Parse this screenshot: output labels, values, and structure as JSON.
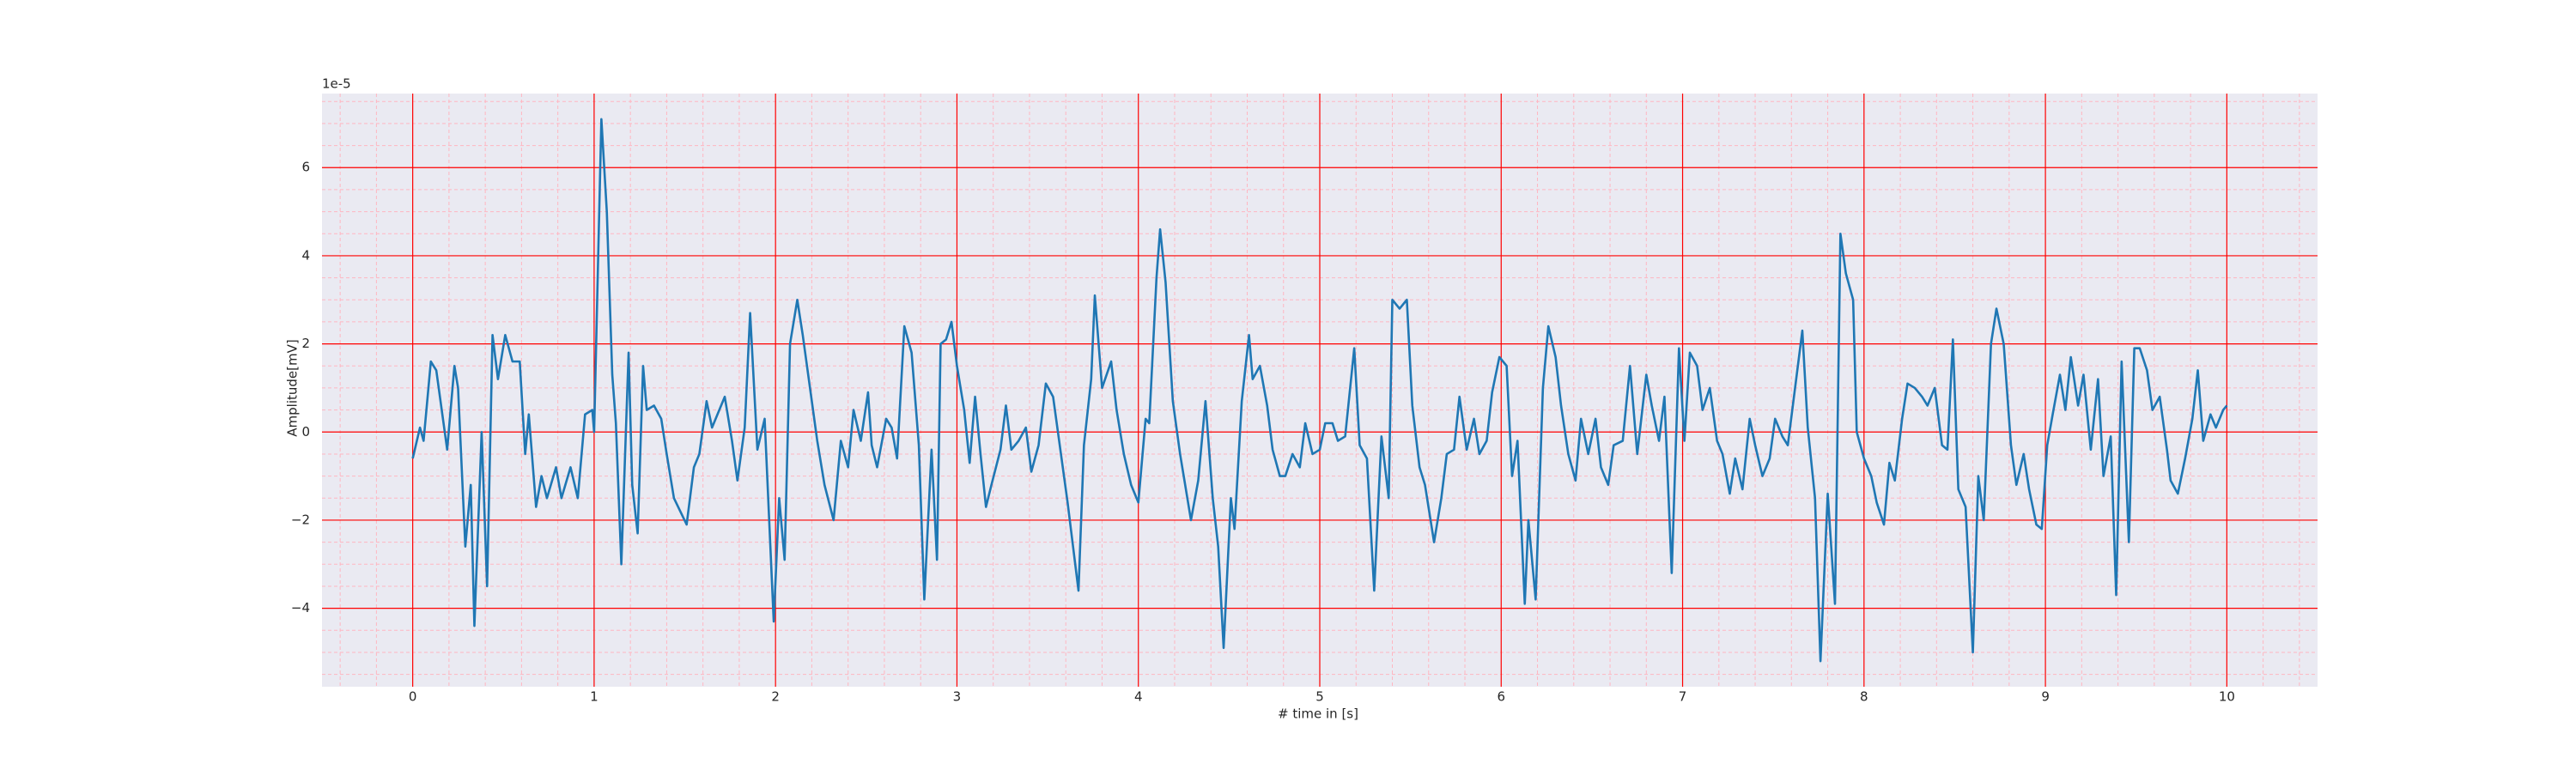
{
  "chart_data": {
    "type": "line",
    "x_label": "# time in [s]",
    "y_label": "Amplitude[mV]",
    "y_offset_label": "1e-5",
    "color": "#1f77b4",
    "background": "#eaeaf2",
    "grid": true,
    "grid_color": "#ff0000",
    "minor_grid": true,
    "minor_grid_color": "#ffb6c1",
    "x_minor_divisions": 5,
    "y_minor_divisions": 4,
    "xlim": [
      -0.5,
      10.5
    ],
    "ylim": [
      -5.78,
      7.68
    ],
    "xticks": [
      0,
      1,
      2,
      3,
      4,
      5,
      6,
      7,
      8,
      9,
      10
    ],
    "yticks": [
      {
        "value": -4,
        "label": "−4"
      },
      {
        "value": -2,
        "label": "−2"
      },
      0,
      2,
      4,
      6
    ],
    "x": [
      0.0,
      0.04,
      0.06,
      0.1,
      0.13,
      0.19,
      0.23,
      0.25,
      0.29,
      0.32,
      0.34,
      0.38,
      0.41,
      0.44,
      0.47,
      0.51,
      0.55,
      0.59,
      0.62,
      0.64,
      0.68,
      0.71,
      0.74,
      0.79,
      0.82,
      0.87,
      0.91,
      0.95,
      0.99,
      1.0,
      1.04,
      1.07,
      1.1,
      1.12,
      1.15,
      1.19,
      1.21,
      1.24,
      1.27,
      1.29,
      1.33,
      1.37,
      1.4,
      1.44,
      1.51,
      1.55,
      1.58,
      1.62,
      1.65,
      1.68,
      1.72,
      1.76,
      1.79,
      1.83,
      1.86,
      1.9,
      1.94,
      1.99,
      2.02,
      2.05,
      2.08,
      2.12,
      2.15,
      2.19,
      2.23,
      2.27,
      2.32,
      2.36,
      2.4,
      2.43,
      2.47,
      2.51,
      2.53,
      2.56,
      2.61,
      2.64,
      2.67,
      2.71,
      2.75,
      2.79,
      2.82,
      2.86,
      2.89,
      2.91,
      2.94,
      2.97,
      3.0,
      3.04,
      3.07,
      3.1,
      3.13,
      3.16,
      3.19,
      3.24,
      3.27,
      3.3,
      3.34,
      3.38,
      3.41,
      3.45,
      3.49,
      3.53,
      3.57,
      3.61,
      3.67,
      3.7,
      3.74,
      3.76,
      3.8,
      3.85,
      3.88,
      3.92,
      3.96,
      4.0,
      4.04,
      4.06,
      4.1,
      4.12,
      4.15,
      4.19,
      4.23,
      4.25,
      4.29,
      4.33,
      4.37,
      4.41,
      4.44,
      4.47,
      4.51,
      4.53,
      4.57,
      4.61,
      4.63,
      4.67,
      4.71,
      4.74,
      4.78,
      4.81,
      4.85,
      4.89,
      4.92,
      4.96,
      5.0,
      5.03,
      5.07,
      5.1,
      5.14,
      5.19,
      5.22,
      5.26,
      5.3,
      5.34,
      5.38,
      5.4,
      5.44,
      5.48,
      5.51,
      5.55,
      5.58,
      5.63,
      5.67,
      5.7,
      5.74,
      5.77,
      5.81,
      5.85,
      5.88,
      5.92,
      5.95,
      5.99,
      6.03,
      6.06,
      6.09,
      6.13,
      6.15,
      6.19,
      6.23,
      6.26,
      6.3,
      6.33,
      6.37,
      6.41,
      6.44,
      6.48,
      6.52,
      6.55,
      6.59,
      6.62,
      6.67,
      6.71,
      6.75,
      6.8,
      6.83,
      6.87,
      6.9,
      6.94,
      6.98,
      7.01,
      7.04,
      7.08,
      7.11,
      7.15,
      7.19,
      7.22,
      7.26,
      7.29,
      7.33,
      7.37,
      7.4,
      7.44,
      7.48,
      7.51,
      7.55,
      7.58,
      7.62,
      7.66,
      7.69,
      7.73,
      7.76,
      7.8,
      7.84,
      7.87,
      7.9,
      7.94,
      7.96,
      8.0,
      8.04,
      8.07,
      8.11,
      8.14,
      8.17,
      8.21,
      8.24,
      8.28,
      8.32,
      8.35,
      8.39,
      8.43,
      8.46,
      8.49,
      8.52,
      8.56,
      8.6,
      8.63,
      8.66,
      8.7,
      8.73,
      8.77,
      8.81,
      8.84,
      8.88,
      8.91,
      8.95,
      8.98,
      9.01,
      9.04,
      9.08,
      9.11,
      9.14,
      9.18,
      9.21,
      9.25,
      9.29,
      9.32,
      9.36,
      9.39,
      9.42,
      9.46,
      9.49,
      9.52,
      9.56,
      9.59,
      9.63,
      9.67,
      9.69,
      9.73,
      9.77,
      9.81,
      9.84,
      9.87,
      9.91,
      9.94,
      9.98,
      10.0
    ],
    "values": [
      -0.6,
      0.1,
      -0.2,
      1.6,
      1.4,
      -0.4,
      1.5,
      1.0,
      -2.6,
      -1.2,
      -4.4,
      0,
      -3.5,
      2.2,
      1.2,
      2.2,
      1.6,
      1.6,
      -0.5,
      0.4,
      -1.7,
      -1.0,
      -1.5,
      -0.8,
      -1.5,
      -0.8,
      -1.5,
      0.4,
      0.5,
      0,
      7.1,
      5.0,
      1.3,
      0.2,
      -3.0,
      1.8,
      -1.2,
      -2.3,
      1.5,
      0.5,
      0.6,
      0.3,
      -0.5,
      -1.5,
      -2.1,
      -0.8,
      -0.5,
      0.7,
      0.1,
      0.4,
      0.8,
      -0.2,
      -1.1,
      0.1,
      2.7,
      -0.4,
      0.3,
      -4.3,
      -1.5,
      -2.9,
      2.0,
      3.0,
      2.2,
      1.0,
      -0.2,
      -1.2,
      -2.0,
      -0.2,
      -0.8,
      0.5,
      -0.2,
      0.9,
      -0.3,
      -0.8,
      0.3,
      0.1,
      -0.6,
      2.4,
      1.8,
      -0.3,
      -3.8,
      -0.4,
      -2.9,
      2.0,
      2.1,
      2.5,
      1.5,
      0.5,
      -0.7,
      0.8,
      -0.5,
      -1.7,
      -1.2,
      -0.4,
      0.6,
      -0.4,
      -0.2,
      0.1,
      -0.9,
      -0.3,
      1.1,
      0.8,
      -0.4,
      -1.6,
      -3.6,
      -0.3,
      1.2,
      3.1,
      1.0,
      1.6,
      0.5,
      -0.5,
      -1.2,
      -1.6,
      0.3,
      0.2,
      3.5,
      4.6,
      3.4,
      0.7,
      -0.5,
      -1.0,
      -2.0,
      -1.1,
      0.7,
      -1.5,
      -2.6,
      -4.9,
      -1.5,
      -2.2,
      0.7,
      2.2,
      1.2,
      1.5,
      0.6,
      -0.4,
      -1.0,
      -1.0,
      -0.5,
      -0.8,
      0.2,
      -0.5,
      -0.4,
      0.2,
      0.2,
      -0.2,
      -0.1,
      1.9,
      -0.3,
      -0.6,
      -3.6,
      -0.1,
      -1.5,
      3.0,
      2.8,
      3.0,
      0.6,
      -0.8,
      -1.2,
      -2.5,
      -1.5,
      -0.5,
      -0.4,
      0.8,
      -0.4,
      0.3,
      -0.5,
      -0.2,
      0.9,
      1.7,
      1.5,
      -1.0,
      -0.2,
      -3.9,
      -2.0,
      -3.8,
      1.0,
      2.4,
      1.7,
      0.6,
      -0.5,
      -1.1,
      0.3,
      -0.5,
      0.3,
      -0.8,
      -1.2,
      -0.3,
      -0.2,
      1.5,
      -0.5,
      1.3,
      0.6,
      -0.2,
      0.8,
      -3.2,
      1.9,
      -0.2,
      1.8,
      1.5,
      0.5,
      1.0,
      -0.2,
      -0.5,
      -1.4,
      -0.6,
      -1.3,
      0.3,
      -0.3,
      -1.0,
      -0.6,
      0.3,
      -0.1,
      -0.3,
      1.0,
      2.3,
      0.1,
      -1.5,
      -5.2,
      -1.4,
      -3.9,
      4.5,
      3.6,
      3.0,
      0.0,
      -0.6,
      -1.0,
      -1.6,
      -2.1,
      -0.7,
      -1.1,
      0.3,
      1.1,
      1.0,
      0.8,
      0.6,
      1.0,
      -0.3,
      -0.4,
      2.1,
      -1.3,
      -1.7,
      -5.0,
      -1.0,
      -2.0,
      2.0,
      2.8,
      2.0,
      -0.3,
      -1.2,
      -0.5,
      -1.3,
      -2.1,
      -2.2,
      -0.3,
      0.4,
      1.3,
      0.5,
      1.7,
      0.6,
      1.3,
      -0.4,
      1.2,
      -1.0,
      -0.1,
      -3.7,
      1.6,
      -2.5,
      1.9,
      1.9,
      1.4,
      0.5,
      0.8,
      -0.4,
      -1.1,
      -1.4,
      -0.6,
      0.3,
      1.4,
      -0.2,
      0.4,
      0.1,
      0.5,
      0.6
    ]
  }
}
